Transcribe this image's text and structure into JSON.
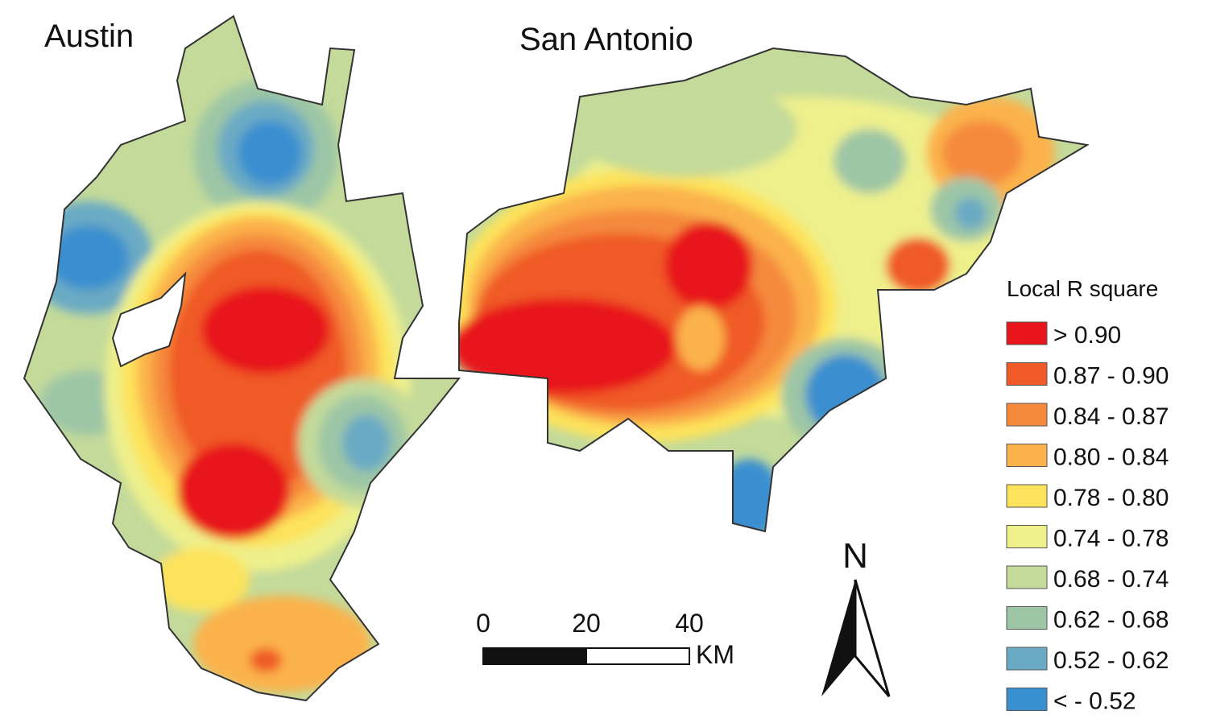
{
  "maps": [
    {
      "label": "Austin"
    },
    {
      "label": "San Antonio"
    }
  ],
  "legend": {
    "title": "Local R square",
    "items": [
      {
        "label": "> 0.90",
        "color": "#e8161c"
      },
      {
        "label": "0.87 - 0.90",
        "color": "#f05a28"
      },
      {
        "label": "0.84 - 0.87",
        "color": "#f58a3c"
      },
      {
        "label": "0.80 - 0.84",
        "color": "#fbb24c"
      },
      {
        "label": "0.78 - 0.80",
        "color": "#fde35c"
      },
      {
        "label": "0.74 - 0.78",
        "color": "#eef08c"
      },
      {
        "label": "0.68 - 0.74",
        "color": "#c3da9a"
      },
      {
        "label": "0.62 - 0.68",
        "color": "#9dc6a6"
      },
      {
        "label": "0.52 - 0.62",
        "color": "#6aaac4"
      },
      {
        "label": "< - 0.52",
        "color": "#3a8fd0"
      }
    ]
  },
  "scale_bar": {
    "ticks": [
      0,
      20,
      40
    ],
    "unit": "KM"
  },
  "north_arrow": {
    "label": "N"
  }
}
